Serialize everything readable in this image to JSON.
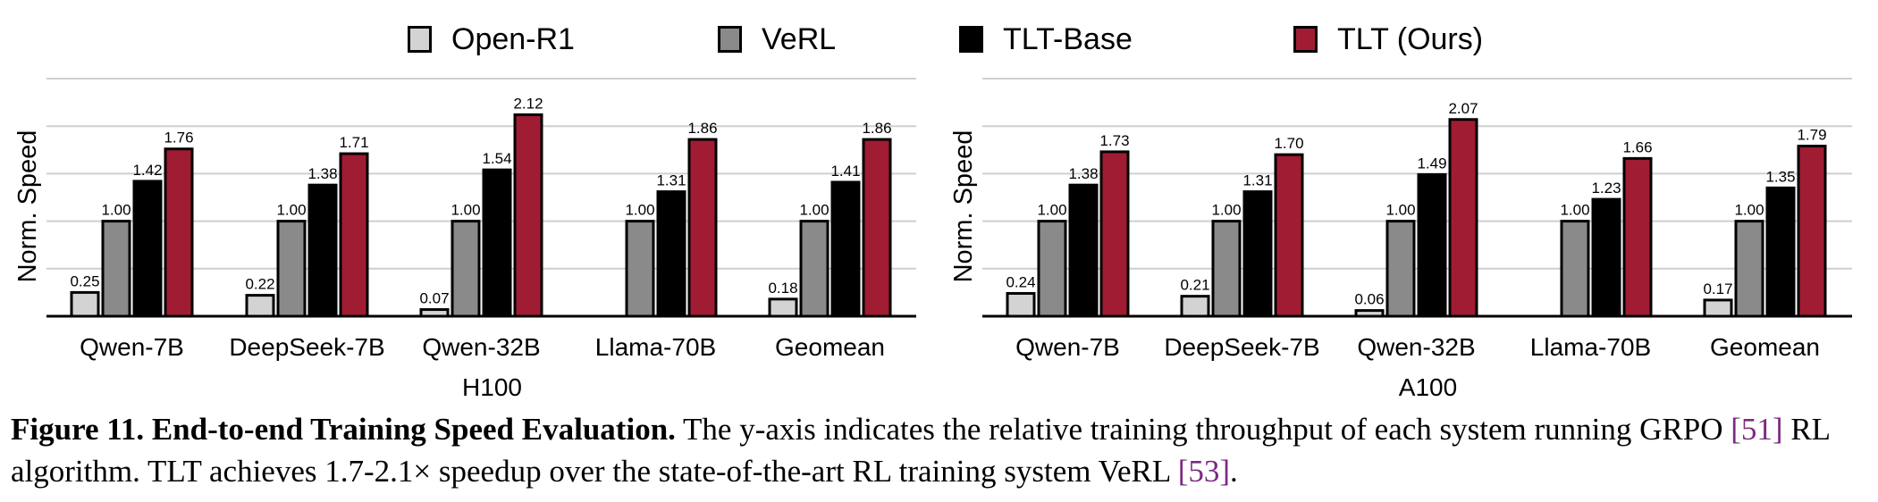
{
  "legend": [
    {
      "label": "Open-R1",
      "color": "#d3d3d3"
    },
    {
      "label": "VeRL",
      "color": "#8a8a8a"
    },
    {
      "label": "TLT-Base",
      "color": "#000000"
    },
    {
      "label": "TLT (Ours)",
      "color": "#a01c33"
    }
  ],
  "chart_data": [
    {
      "type": "bar",
      "title": "H100",
      "xlabel": "H100",
      "ylabel": "Norm. Speed",
      "ylim": [
        0,
        2.5
      ],
      "gridlines": [
        0,
        0.5,
        1.0,
        1.5,
        2.0,
        2.5
      ],
      "grid": true,
      "categories": [
        "Qwen-7B",
        "DeepSeek-7B",
        "Qwen-32B",
        "Llama-70B",
        "Geomean"
      ],
      "series": [
        {
          "name": "Open-R1",
          "values": [
            0.25,
            0.22,
            0.07,
            null,
            0.18
          ],
          "labels": [
            "0.25",
            "0.22",
            "0.07",
            "",
            "0.18"
          ]
        },
        {
          "name": "VeRL",
          "values": [
            1.0,
            1.0,
            1.0,
            1.0,
            1.0
          ],
          "labels": [
            "1.00",
            "1.00",
            "1.00",
            "1.00",
            "1.00"
          ]
        },
        {
          "name": "TLT-Base",
          "values": [
            1.42,
            1.38,
            1.54,
            1.31,
            1.41
          ],
          "labels": [
            "1.42",
            "1.38",
            "1.54",
            "1.31",
            "1.41"
          ]
        },
        {
          "name": "TLT (Ours)",
          "values": [
            1.76,
            1.71,
            2.12,
            1.86,
            1.86
          ],
          "labels": [
            "1.76",
            "1.71",
            "2.12",
            "1.86",
            "1.86"
          ]
        }
      ]
    },
    {
      "type": "bar",
      "title": "A100",
      "xlabel": "A100",
      "ylabel": "Norm. Speed",
      "ylim": [
        0,
        2.5
      ],
      "gridlines": [
        0,
        0.5,
        1.0,
        1.5,
        2.0,
        2.5
      ],
      "grid": true,
      "categories": [
        "Qwen-7B",
        "DeepSeek-7B",
        "Qwen-32B",
        "Llama-70B",
        "Geomean"
      ],
      "series": [
        {
          "name": "Open-R1",
          "values": [
            0.24,
            0.21,
            0.06,
            null,
            0.17
          ],
          "labels": [
            "0.24",
            "0.21",
            "0.06",
            "",
            "0.17"
          ]
        },
        {
          "name": "VeRL",
          "values": [
            1.0,
            1.0,
            1.0,
            1.0,
            1.0
          ],
          "labels": [
            "1.00",
            "1.00",
            "1.00",
            "1.00",
            "1.00"
          ]
        },
        {
          "name": "TLT-Base",
          "values": [
            1.38,
            1.31,
            1.49,
            1.23,
            1.35
          ],
          "labels": [
            "1.38",
            "1.31",
            "1.49",
            "1.23",
            "1.35"
          ]
        },
        {
          "name": "TLT (Ours)",
          "values": [
            1.73,
            1.7,
            2.07,
            1.66,
            1.79
          ],
          "labels": [
            "1.73",
            "1.70",
            "2.07",
            "1.66",
            "1.79"
          ]
        }
      ]
    }
  ],
  "caption": {
    "title": "Figure 11. End-to-end Training Speed Evaluation.",
    "text_1": " The y-axis indicates the relative training throughput of each system running GRPO ",
    "cite_1": "[51]",
    "text_2": " RL algorithm. TLT achieves 1.7-2.1× speedup over the state-of-the-art RL training system VeRL ",
    "cite_2": "[53]",
    "text_3": "."
  }
}
